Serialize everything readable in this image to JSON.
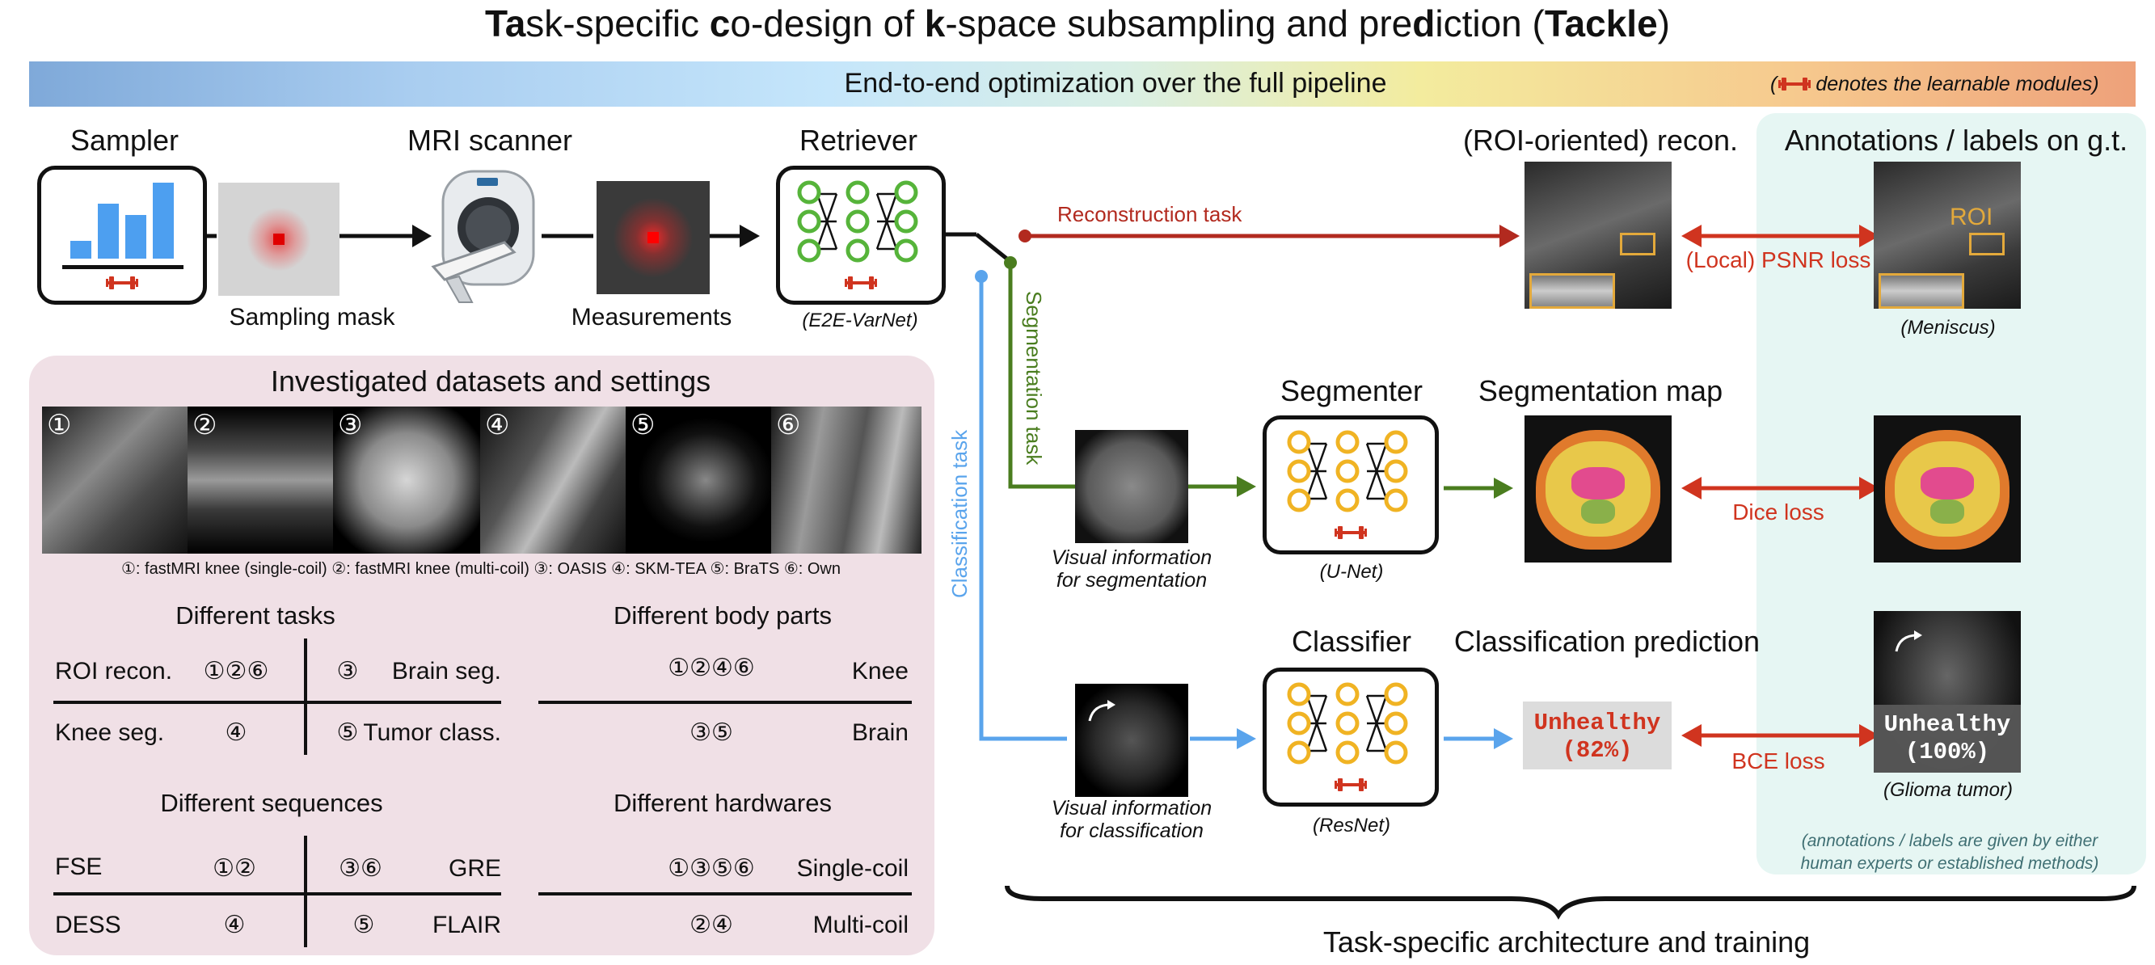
{
  "title": {
    "parts": [
      {
        "t": "Ta",
        "b": true
      },
      {
        "t": "sk-specific ",
        "b": false
      },
      {
        "t": "c",
        "b": true
      },
      {
        "t": "o-design of ",
        "b": false
      },
      {
        "t": "k",
        "b": true
      },
      {
        "t": "-space subsampling and pre",
        "b": false
      },
      {
        "t": "d",
        "b": true
      },
      {
        "t": "iction (",
        "b": false
      },
      {
        "t": "Tackle",
        "b": true
      },
      {
        "t": ")",
        "b": false
      }
    ]
  },
  "banner": {
    "main": "End-to-end optimization over the full pipeline",
    "note_open": "(",
    "note": "denotes the learnable modules)"
  },
  "pipeline": {
    "sampler": "Sampler",
    "mri_scanner": "MRI scanner",
    "retriever": "Retriever",
    "sampling_mask": "Sampling mask",
    "measurements": "Measurements",
    "retriever_model": "(E2E-VarNet)"
  },
  "tasks": {
    "reconstruction_task": "Reconstruction task",
    "segmentation_task": "Segmentation task",
    "classification_task": "Classification task"
  },
  "recon": {
    "header": "(ROI-oriented) recon.",
    "labels_header": "Annotations / labels on g.t.",
    "loss": "(Local) PSNR loss",
    "roi": "ROI",
    "meniscus": "(Meniscus)"
  },
  "segmentation": {
    "segmenter": "Segmenter",
    "map": "Segmentation map",
    "visual_info_1": "Visual information",
    "visual_info_2": "for segmentation",
    "model": "(U-Net)",
    "loss": "Dice loss"
  },
  "classification": {
    "classifier": "Classifier",
    "prediction_header": "Classification prediction",
    "visual_info_1": "Visual information",
    "visual_info_2": "for classification",
    "model": "(ResNet)",
    "loss": "BCE loss",
    "pred_1": "Unhealthy",
    "pred_2": "(82%)",
    "gt_1": "Unhealthy",
    "gt_2": "(100%)",
    "glioma": "(Glioma tumor)"
  },
  "annotation_note": {
    "line1": "(annotations / labels are given by either",
    "line2": "human experts or established methods)"
  },
  "bottom_label": "Task-specific architecture and training",
  "datasets": {
    "title": "Investigated datasets and settings",
    "numbers": [
      "①",
      "②",
      "③",
      "④",
      "⑤",
      "⑥"
    ],
    "legend": "①: fastMRI knee (single-coil)  ②: fastMRI knee (multi-coil) ③: OASIS ④: SKM-TEA ⑤: BraTS ⑥: Own",
    "tasks": {
      "title": "Different tasks",
      "rows": [
        {
          "left_label": "ROI recon.",
          "left_ids": "①②⑥",
          "right_ids": "③",
          "right_label": "Brain seg."
        },
        {
          "left_label": "Knee seg.",
          "left_ids": "④",
          "right_ids": "⑤",
          "right_label": "Tumor class."
        }
      ]
    },
    "body_parts": {
      "title": "Different body parts",
      "rows": [
        {
          "ids": "①②④⑥",
          "label": "Knee"
        },
        {
          "ids": "③⑤",
          "label": "Brain"
        }
      ]
    },
    "sequences": {
      "title": "Different sequences",
      "rows": [
        {
          "left_label": "FSE",
          "left_ids": "①②",
          "right_ids": "③⑥",
          "right_label": "GRE"
        },
        {
          "left_label": "DESS",
          "left_ids": "④",
          "right_ids": "⑤",
          "right_label": "FLAIR"
        }
      ]
    },
    "hardwares": {
      "title": "Different hardwares",
      "rows": [
        {
          "ids": "①③⑤⑥",
          "label": "Single-coil"
        },
        {
          "ids": "②④",
          "label": "Multi-coil"
        }
      ]
    }
  },
  "colors": {
    "recon": "#b22a1f",
    "seg": "#4a7d1f",
    "cls": "#5aa4ec",
    "loss": "#d0341f",
    "roi": "#e3a93b",
    "node": "#f0b323",
    "node_green": "#56b43a",
    "bar": "#4d9ff0",
    "panel": "#f0e0e6",
    "annot_panel": "#e6f6f3"
  }
}
